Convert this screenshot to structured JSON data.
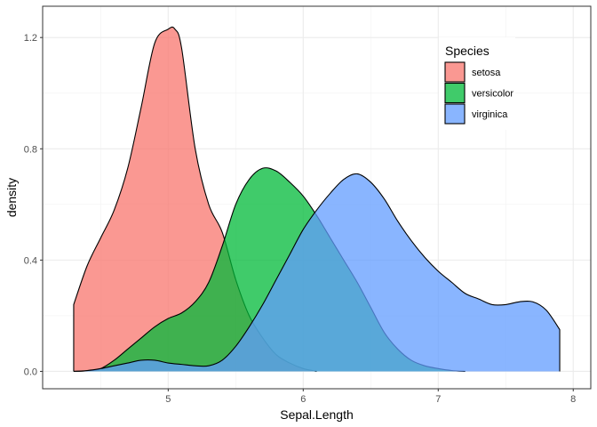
{
  "chart_data": {
    "type": "area",
    "subtype": "density",
    "xlabel": "Sepal.Length",
    "ylabel": "density",
    "xlim": [
      4.07,
      8.13
    ],
    "ylim": [
      -0.0625,
      1.3125
    ],
    "x_ticks": [
      5,
      6,
      7,
      8
    ],
    "x_tick_labels": [
      "5",
      "6",
      "7",
      "8"
    ],
    "y_ticks": [
      0.0,
      0.4,
      0.8,
      1.2
    ],
    "y_tick_labels": [
      "0.0",
      "0.4",
      "0.8",
      "1.2"
    ],
    "grid": true,
    "legend": {
      "title": "Species",
      "position": "top-right",
      "entries": [
        "setosa",
        "versicolor",
        "virginica"
      ]
    },
    "series": [
      {
        "name": "setosa",
        "color": "#F8766D",
        "x": [
          4.3,
          4.4,
          4.5,
          4.6,
          4.7,
          4.8,
          4.9,
          5.0,
          5.05,
          5.1,
          5.2,
          5.3,
          5.4,
          5.5,
          5.6,
          5.7,
          5.8,
          5.9,
          6.0,
          6.1
        ],
        "y": [
          0.24,
          0.38,
          0.48,
          0.58,
          0.73,
          0.95,
          1.18,
          1.23,
          1.23,
          1.16,
          0.8,
          0.6,
          0.5,
          0.33,
          0.2,
          0.12,
          0.06,
          0.03,
          0.01,
          0.0
        ]
      },
      {
        "name": "versicolor",
        "color": "#00BA38",
        "x": [
          4.3,
          4.4,
          4.5,
          4.6,
          4.7,
          4.8,
          4.9,
          5.0,
          5.1,
          5.2,
          5.3,
          5.4,
          5.5,
          5.6,
          5.7,
          5.8,
          5.9,
          6.0,
          6.1,
          6.2,
          6.3,
          6.4,
          6.5,
          6.6,
          6.7,
          6.8,
          6.9,
          7.0,
          7.1,
          7.2
        ],
        "y": [
          0.0,
          0.002,
          0.01,
          0.04,
          0.08,
          0.12,
          0.16,
          0.19,
          0.21,
          0.25,
          0.32,
          0.45,
          0.6,
          0.69,
          0.73,
          0.72,
          0.68,
          0.63,
          0.56,
          0.48,
          0.4,
          0.32,
          0.23,
          0.14,
          0.08,
          0.04,
          0.02,
          0.01,
          0.003,
          0.0
        ]
      },
      {
        "name": "virginica",
        "color": "#619CFF",
        "x": [
          4.3,
          4.4,
          4.5,
          4.6,
          4.7,
          4.8,
          4.9,
          5.0,
          5.1,
          5.2,
          5.3,
          5.4,
          5.5,
          5.6,
          5.7,
          5.8,
          5.9,
          6.0,
          6.1,
          6.2,
          6.3,
          6.4,
          6.5,
          6.6,
          6.7,
          6.8,
          6.9,
          7.0,
          7.1,
          7.2,
          7.3,
          7.4,
          7.5,
          7.6,
          7.7,
          7.8,
          7.9
        ],
        "y": [
          0.0,
          0.003,
          0.01,
          0.02,
          0.03,
          0.04,
          0.04,
          0.03,
          0.025,
          0.02,
          0.02,
          0.04,
          0.09,
          0.16,
          0.24,
          0.33,
          0.42,
          0.51,
          0.58,
          0.64,
          0.69,
          0.71,
          0.68,
          0.62,
          0.54,
          0.47,
          0.41,
          0.36,
          0.32,
          0.28,
          0.26,
          0.24,
          0.24,
          0.25,
          0.25,
          0.22,
          0.15
        ]
      }
    ]
  }
}
